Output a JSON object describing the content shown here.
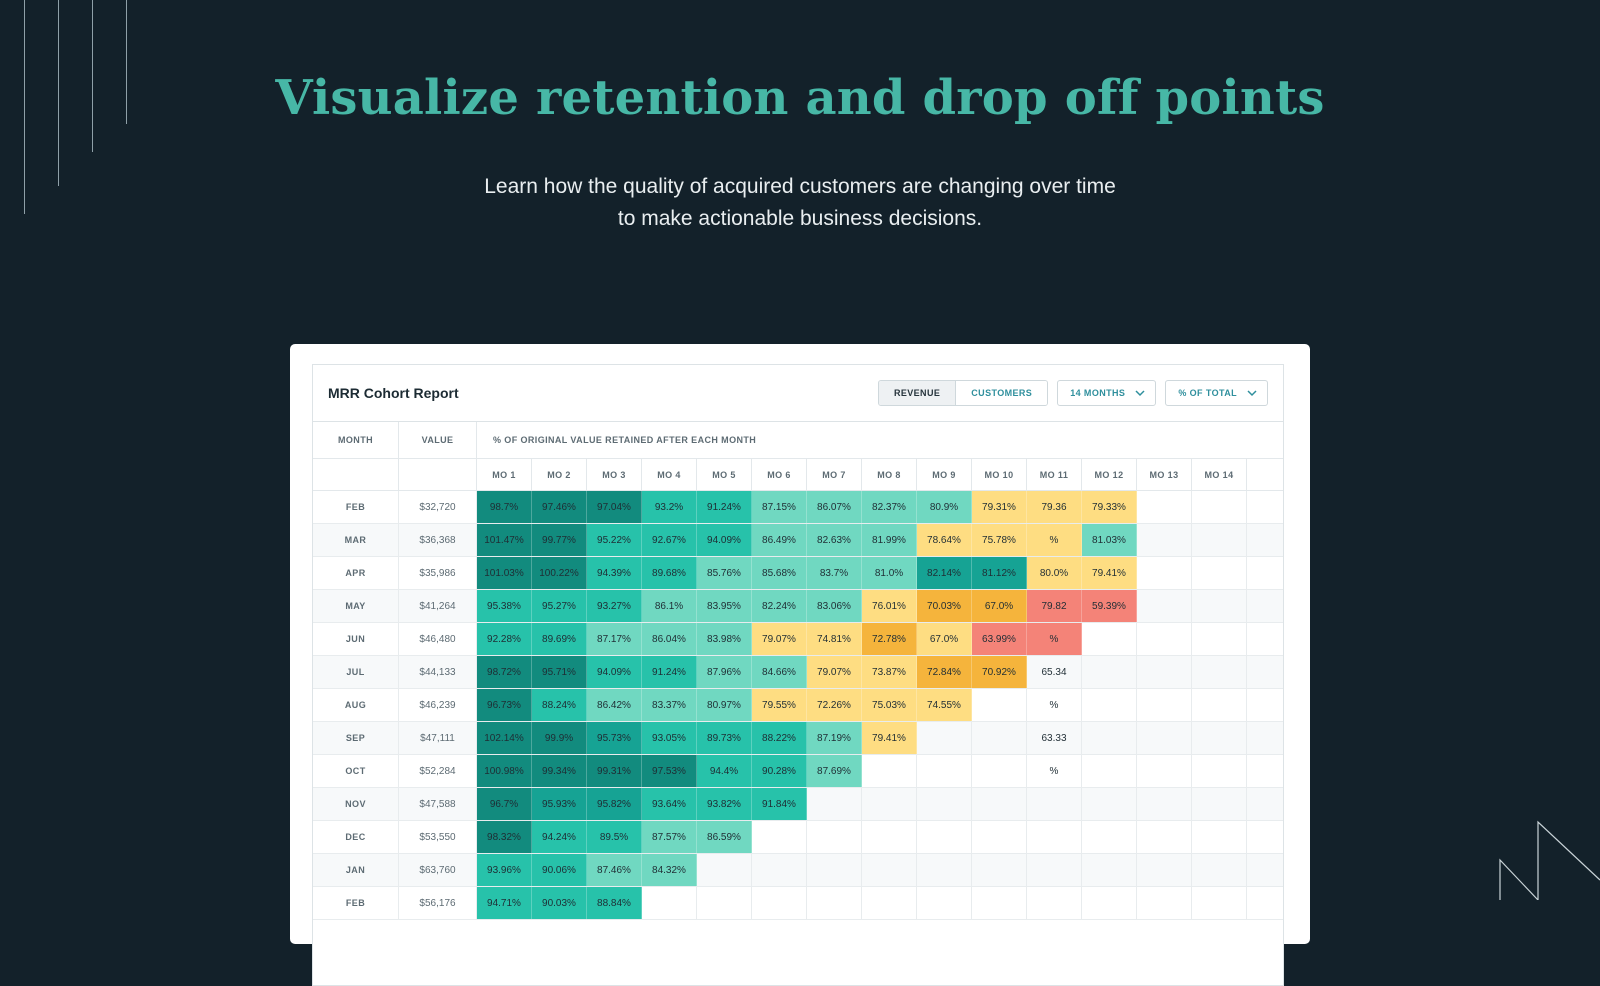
{
  "hero": {
    "title": "Visualize retention and drop off points",
    "subtitle_line1": "Learn how the quality of acquired customers are changing over time",
    "subtitle_line2": "to make actionable business decisions."
  },
  "report": {
    "title": "MRR Cohort Report",
    "toggle": {
      "revenue_label": "REVENUE",
      "customers_label": "CUSTOMERS",
      "active": "revenue"
    },
    "months_dropdown": {
      "selected": "14 MONTHS",
      "icon": "chevron-down-icon"
    },
    "metric_dropdown": {
      "selected": "% OF TOTAL",
      "icon": "chevron-down-icon"
    },
    "headers": {
      "month": "MONTH",
      "value": "VALUE",
      "retained_caption": "% OF ORIGINAL VALUE RETAINED AFTER EACH MONTH",
      "months": [
        "MO 1",
        "MO 2",
        "MO 3",
        "MO 4",
        "MO 5",
        "MO 6",
        "MO 7",
        "MO 8",
        "MO 9",
        "MO 10",
        "MO 11",
        "MO 12",
        "MO 13",
        "MO 14"
      ]
    },
    "colors": {
      "darkest": "#128b7e",
      "dark": "#16a394",
      "mid": "#27c2aa",
      "light": "#70d8c1",
      "yellow": "#fedd82",
      "orange": "#f5b43c",
      "red": "#f48378",
      "empty": ""
    },
    "rows": [
      {
        "month": "FEB",
        "value": "$32,720",
        "cells": [
          [
            "98.7%",
            "darkest"
          ],
          [
            "97.46%",
            "darkest"
          ],
          [
            "97.04%",
            "darkest"
          ],
          [
            "93.2%",
            "mid"
          ],
          [
            "91.24%",
            "mid"
          ],
          [
            "87.15%",
            "light"
          ],
          [
            "86.07%",
            "light"
          ],
          [
            "82.37%",
            "light"
          ],
          [
            "80.9%",
            "light"
          ],
          [
            "79.31%",
            "yellow"
          ],
          [
            "79.36",
            "yellow"
          ],
          [
            "79.33%",
            "yellow"
          ],
          [
            "",
            ""
          ],
          [
            "",
            ""
          ]
        ]
      },
      {
        "month": "MAR",
        "value": "$36,368",
        "cells": [
          [
            "101.47%",
            "darkest"
          ],
          [
            "99.77%",
            "darkest"
          ],
          [
            "95.22%",
            "mid"
          ],
          [
            "92.67%",
            "mid"
          ],
          [
            "94.09%",
            "mid"
          ],
          [
            "86.49%",
            "light"
          ],
          [
            "82.63%",
            "light"
          ],
          [
            "81.99%",
            "light"
          ],
          [
            "78.64%",
            "yellow"
          ],
          [
            "75.78%",
            "yellow"
          ],
          [
            "%",
            "yellow"
          ],
          [
            "81.03%",
            "light"
          ],
          [
            "",
            ""
          ],
          [
            "",
            ""
          ]
        ]
      },
      {
        "month": "APR",
        "value": "$35,986",
        "cells": [
          [
            "101.03%",
            "darkest"
          ],
          [
            "100.22%",
            "darkest"
          ],
          [
            "94.39%",
            "mid"
          ],
          [
            "89.68%",
            "mid"
          ],
          [
            "85.76%",
            "light"
          ],
          [
            "85.68%",
            "light"
          ],
          [
            "83.7%",
            "light"
          ],
          [
            "81.0%",
            "light"
          ],
          [
            "82.14%",
            "dark"
          ],
          [
            "81.12%",
            "dark"
          ],
          [
            "80.0%",
            "yellow"
          ],
          [
            "79.41%",
            "yellow"
          ],
          [
            "",
            ""
          ],
          [
            "",
            ""
          ]
        ]
      },
      {
        "month": "MAY",
        "value": "$41,264",
        "cells": [
          [
            "95.38%",
            "mid"
          ],
          [
            "95.27%",
            "mid"
          ],
          [
            "93.27%",
            "mid"
          ],
          [
            "86.1%",
            "light"
          ],
          [
            "83.95%",
            "light"
          ],
          [
            "82.24%",
            "light"
          ],
          [
            "83.06%",
            "light"
          ],
          [
            "76.01%",
            "yellow"
          ],
          [
            "70.03%",
            "orange"
          ],
          [
            "67.0%",
            "orange"
          ],
          [
            "79.82",
            "red"
          ],
          [
            "59.39%",
            "red"
          ],
          [
            "",
            ""
          ],
          [
            "",
            ""
          ]
        ]
      },
      {
        "month": "JUN",
        "value": "$46,480",
        "cells": [
          [
            "92.28%",
            "mid"
          ],
          [
            "89.69%",
            "mid"
          ],
          [
            "87.17%",
            "light"
          ],
          [
            "86.04%",
            "light"
          ],
          [
            "83.98%",
            "light"
          ],
          [
            "79.07%",
            "yellow"
          ],
          [
            "74.81%",
            "yellow"
          ],
          [
            "72.78%",
            "orange"
          ],
          [
            "67.0%",
            "yellow"
          ],
          [
            "63.99%",
            "red"
          ],
          [
            "%",
            "red"
          ],
          [
            "",
            ""
          ],
          [
            "",
            ""
          ],
          [
            "",
            ""
          ]
        ]
      },
      {
        "month": "JUL",
        "value": "$44,133",
        "cells": [
          [
            "98.72%",
            "darkest"
          ],
          [
            "95.71%",
            "darkest"
          ],
          [
            "94.09%",
            "mid"
          ],
          [
            "91.24%",
            "mid"
          ],
          [
            "87.96%",
            "light"
          ],
          [
            "84.66%",
            "light"
          ],
          [
            "79.07%",
            "yellow"
          ],
          [
            "73.87%",
            "yellow"
          ],
          [
            "72.84%",
            "orange"
          ],
          [
            "70.92%",
            "orange"
          ],
          [
            "65.34",
            ""
          ],
          [
            "",
            ""
          ],
          [
            "",
            ""
          ],
          [
            "",
            ""
          ]
        ]
      },
      {
        "month": "AUG",
        "value": "$46,239",
        "cells": [
          [
            "96.73%",
            "darkest"
          ],
          [
            "88.24%",
            "mid"
          ],
          [
            "86.42%",
            "light"
          ],
          [
            "83.37%",
            "light"
          ],
          [
            "80.97%",
            "light"
          ],
          [
            "79.55%",
            "yellow"
          ],
          [
            "72.26%",
            "yellow"
          ],
          [
            "75.03%",
            "yellow"
          ],
          [
            "74.55%",
            "yellow"
          ],
          [
            "",
            ""
          ],
          [
            "%",
            ""
          ],
          [
            "",
            ""
          ],
          [
            "",
            ""
          ],
          [
            "",
            ""
          ]
        ]
      },
      {
        "month": "SEP",
        "value": "$47,111",
        "cells": [
          [
            "102.14%",
            "darkest"
          ],
          [
            "99.9%",
            "darkest"
          ],
          [
            "95.73%",
            "dark"
          ],
          [
            "93.05%",
            "mid"
          ],
          [
            "89.73%",
            "mid"
          ],
          [
            "88.22%",
            "mid"
          ],
          [
            "87.19%",
            "light"
          ],
          [
            "79.41%",
            "yellow"
          ],
          [
            "",
            ""
          ],
          [
            "",
            ""
          ],
          [
            "63.33",
            ""
          ],
          [
            "",
            ""
          ],
          [
            "",
            ""
          ],
          [
            "",
            ""
          ]
        ]
      },
      {
        "month": "OCT",
        "value": "$52,284",
        "cells": [
          [
            "100.98%",
            "darkest"
          ],
          [
            "99.34%",
            "darkest"
          ],
          [
            "99.31%",
            "darkest"
          ],
          [
            "97.53%",
            "darkest"
          ],
          [
            "94.4%",
            "mid"
          ],
          [
            "90.28%",
            "mid"
          ],
          [
            "87.69%",
            "light"
          ],
          [
            "",
            ""
          ],
          [
            "",
            ""
          ],
          [
            "",
            ""
          ],
          [
            "%",
            ""
          ],
          [
            "",
            ""
          ],
          [
            "",
            ""
          ],
          [
            "",
            ""
          ]
        ]
      },
      {
        "month": "NOV",
        "value": "$47,588",
        "cells": [
          [
            "96.7%",
            "darkest"
          ],
          [
            "95.93%",
            "dark"
          ],
          [
            "95.82%",
            "dark"
          ],
          [
            "93.64%",
            "mid"
          ],
          [
            "93.82%",
            "mid"
          ],
          [
            "91.84%",
            "mid"
          ],
          [
            "",
            ""
          ],
          [
            "",
            ""
          ],
          [
            "",
            ""
          ],
          [
            "",
            ""
          ],
          [
            "",
            ""
          ],
          [
            "",
            ""
          ],
          [
            "",
            ""
          ],
          [
            "",
            ""
          ]
        ]
      },
      {
        "month": "DEC",
        "value": "$53,550",
        "cells": [
          [
            "98.32%",
            "darkest"
          ],
          [
            "94.24%",
            "mid"
          ],
          [
            "89.5%",
            "mid"
          ],
          [
            "87.57%",
            "light"
          ],
          [
            "86.59%",
            "light"
          ],
          [
            "",
            ""
          ],
          [
            "",
            ""
          ],
          [
            "",
            ""
          ],
          [
            "",
            ""
          ],
          [
            "",
            ""
          ],
          [
            "",
            ""
          ],
          [
            "",
            ""
          ],
          [
            "",
            ""
          ],
          [
            "",
            ""
          ]
        ]
      },
      {
        "month": "JAN",
        "value": "$63,760",
        "cells": [
          [
            "93.96%",
            "mid"
          ],
          [
            "90.06%",
            "mid"
          ],
          [
            "87.46%",
            "light"
          ],
          [
            "84.32%",
            "light"
          ],
          [
            "",
            ""
          ],
          [
            "",
            ""
          ],
          [
            "",
            ""
          ],
          [
            "",
            ""
          ],
          [
            "",
            ""
          ],
          [
            "",
            ""
          ],
          [
            "",
            ""
          ],
          [
            "",
            ""
          ],
          [
            "",
            ""
          ],
          [
            "",
            ""
          ]
        ]
      },
      {
        "month": "FEB",
        "value": "$56,176",
        "cells": [
          [
            "94.71%",
            "mid"
          ],
          [
            "90.03%",
            "mid"
          ],
          [
            "88.84%",
            "mid"
          ],
          [
            "",
            ""
          ],
          [
            "",
            ""
          ],
          [
            "",
            ""
          ],
          [
            "",
            ""
          ],
          [
            "",
            ""
          ],
          [
            "",
            ""
          ],
          [
            "",
            ""
          ],
          [
            "",
            ""
          ],
          [
            "",
            ""
          ],
          [
            "",
            ""
          ],
          [
            "",
            ""
          ]
        ]
      }
    ]
  }
}
